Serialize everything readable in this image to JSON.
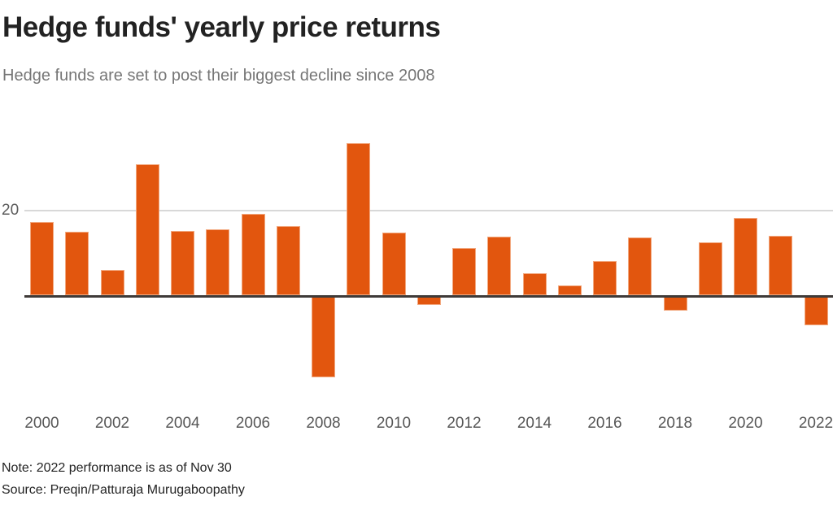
{
  "chart_data": {
    "type": "bar",
    "title": "Hedge funds' yearly price returns",
    "subtitle": "Hedge funds are set to post their biggest decline since 2008",
    "note": "Note: 2022 performance is as of Nov 30",
    "source": "Source: Preqin/Patturaja Murugaboopathy",
    "categories": [
      "2000",
      "2001",
      "2002",
      "2003",
      "2004",
      "2005",
      "2006",
      "2007",
      "2008",
      "2009",
      "2010",
      "2011",
      "2012",
      "2013",
      "2014",
      "2015",
      "2016",
      "2017",
      "2018",
      "2019",
      "2020",
      "2021",
      "2022"
    ],
    "values": [
      17.4,
      15.0,
      6.0,
      31.0,
      15.2,
      15.5,
      19.2,
      16.4,
      -19.2,
      36.0,
      14.8,
      -2.2,
      11.2,
      13.9,
      5.1,
      2.4,
      8.0,
      13.7,
      -3.5,
      12.5,
      18.3,
      14.0,
      -6.9
    ],
    "x_ticks": [
      "2000",
      "2002",
      "2004",
      "2006",
      "2008",
      "2010",
      "2012",
      "2014",
      "2016",
      "2018",
      "2020",
      "2022"
    ],
    "y_axis_label": "20",
    "gridlines_y": [
      20
    ],
    "ylim": [
      -20,
      38
    ],
    "xlabel": "",
    "ylabel": "",
    "legend": "none",
    "bar_color": "#E2560E",
    "axis_color": "#3E3A38",
    "gridline_color": "#D8D8D8",
    "title_color": "#222222",
    "subtitle_color": "#767676"
  }
}
